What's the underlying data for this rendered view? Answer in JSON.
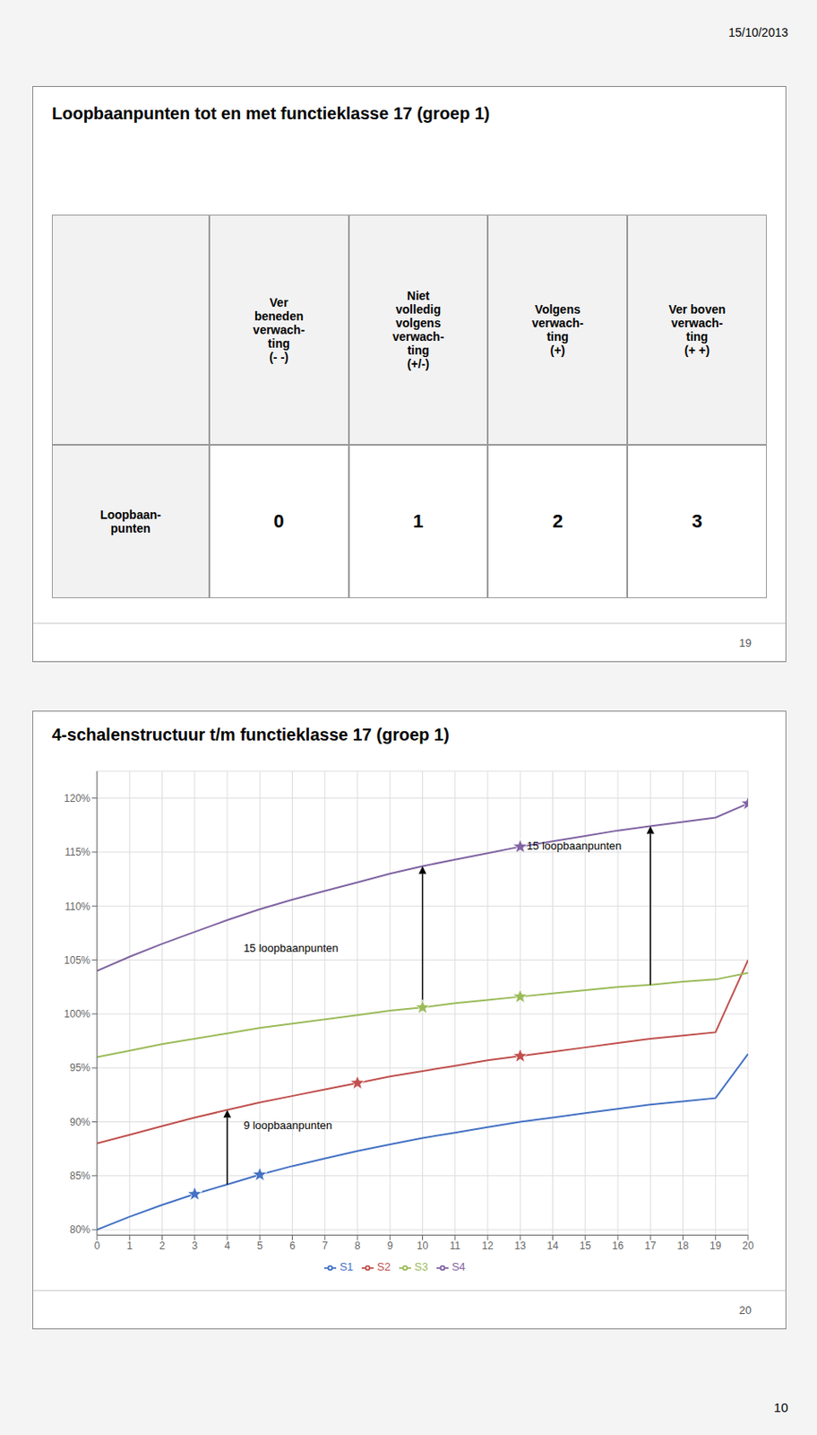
{
  "chart_data": [
    {
      "type": "table",
      "title": "Loopbaanpunten tot en met functieklasse 17 (groep 1)",
      "categories": [
        "Ver\nbeneden\nverwach-\nting\n(- -)",
        "Niet\nvolledig\nvolgens\nverwach-\nting\n(+/-)",
        "Volgens\nverwach-\nting\n(+)",
        "Ver boven\nverwach-\nting\n(+ +)"
      ],
      "series": [
        {
          "name": "Loopbaan-\npunten",
          "values": [
            0,
            1,
            2,
            3
          ]
        }
      ],
      "annotations": [
        {
          "text": "15/10/2013"
        },
        {
          "text": "19"
        }
      ]
    },
    {
      "type": "line",
      "title": "4-schalenstructuur t/m functieklasse 17 (groep 1)",
      "x": [
        0,
        1,
        2,
        3,
        4,
        5,
        6,
        7,
        8,
        9,
        10,
        11,
        12,
        13,
        14,
        15,
        16,
        17,
        18,
        19,
        20
      ],
      "series": [
        {
          "name": "S1",
          "color": "#4472C4",
          "values": [
            0.8,
            0.812,
            0.823,
            0.833,
            0.842,
            0.851,
            0.859,
            0.866,
            0.873,
            0.879,
            0.885,
            0.89,
            0.895,
            0.9,
            0.904,
            0.908,
            0.912,
            0.916,
            0.919,
            0.922,
            0.963
          ],
          "stars": [
            3,
            5
          ]
        },
        {
          "name": "S2",
          "color": "#C0504D",
          "values": [
            0.88,
            0.888,
            0.896,
            0.904,
            0.911,
            0.918,
            0.924,
            0.93,
            0.936,
            0.942,
            0.947,
            0.952,
            0.957,
            0.961,
            0.965,
            0.969,
            0.973,
            0.977,
            0.98,
            0.983,
            1.05
          ],
          "stars": [
            8,
            13
          ]
        },
        {
          "name": "S3",
          "color": "#9BBB59",
          "values": [
            0.96,
            0.966,
            0.972,
            0.977,
            0.982,
            0.987,
            0.991,
            0.995,
            0.999,
            1.003,
            1.006,
            1.01,
            1.013,
            1.016,
            1.019,
            1.022,
            1.025,
            1.027,
            1.03,
            1.032,
            1.038
          ],
          "stars": [
            10,
            13
          ]
        },
        {
          "name": "S4",
          "color": "#8064A2",
          "values": [
            1.04,
            1.053,
            1.065,
            1.076,
            1.087,
            1.097,
            1.106,
            1.114,
            1.122,
            1.13,
            1.137,
            1.143,
            1.149,
            1.155,
            1.16,
            1.165,
            1.17,
            1.174,
            1.178,
            1.182,
            1.195
          ],
          "stars": [
            13,
            20
          ]
        }
      ],
      "xlim": [
        0,
        20
      ],
      "ylim": [
        0.795,
        1.225
      ],
      "xticks": [
        0,
        1,
        2,
        3,
        4,
        5,
        6,
        7,
        8,
        9,
        10,
        11,
        12,
        13,
        14,
        15,
        16,
        17,
        18,
        19,
        20
      ],
      "yticks": [
        {
          "value": 0.8,
          "label": "80%"
        },
        {
          "value": 0.85,
          "label": "85%"
        },
        {
          "value": 0.9,
          "label": "90%"
        },
        {
          "value": 0.95,
          "label": "95%"
        },
        {
          "value": 1.0,
          "label": "100%"
        },
        {
          "value": 1.05,
          "label": "105%"
        },
        {
          "value": 1.1,
          "label": "110%"
        },
        {
          "value": 1.15,
          "label": "115%"
        },
        {
          "value": 1.2,
          "label": "120%"
        }
      ],
      "grid": true,
      "legend": "bottom",
      "annotations": [
        {
          "text": "15 loopbaanpunten",
          "x": 4.5,
          "y": 1.06,
          "arrow": {
            "x": 10,
            "from": "S3",
            "to": "S4"
          }
        },
        {
          "text": "15 loopbaanpunten",
          "x": 13.2,
          "y": 1.155,
          "arrow": {
            "x": 17,
            "from": "S3",
            "to": "S4"
          }
        },
        {
          "text": "9 loopbaanpunten",
          "x": 4.5,
          "y": 0.896,
          "arrow": {
            "x": 4,
            "from": "S1",
            "to": "S2"
          }
        },
        {
          "text": "20"
        },
        {
          "text": "10"
        }
      ]
    }
  ]
}
